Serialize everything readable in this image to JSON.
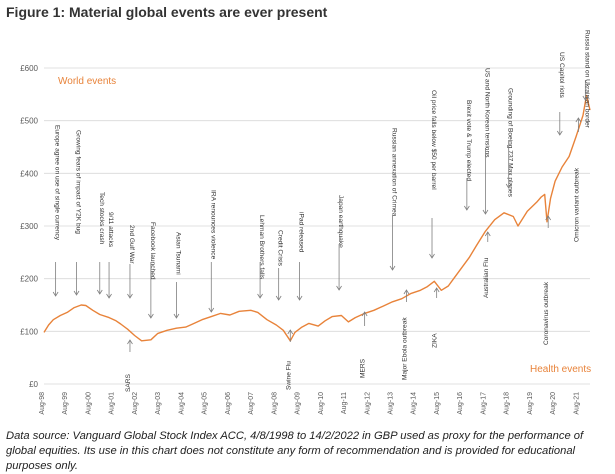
{
  "figure": {
    "title": "Figure 1:  Material global events are ever present",
    "source_note": "Data source: Vanguard Global Stock Index ACC, 4/8/1998 to 14/2/2022 in GBP used as proxy for the performance of global equities. Its use in this chart does not constitute any form of recommendation and is provided for educational purposes only."
  },
  "colors": {
    "line": "#e8833a",
    "grid": "#d9d9d9",
    "axis_text": "#595959",
    "annotation": "#333333",
    "arrow": "#7f7f7f",
    "section_label": "#e8833a"
  },
  "chart_data": {
    "type": "line",
    "title": "Figure 1:  Material global events are ever present",
    "xlabel": "",
    "ylabel": "",
    "ylim": [
      0,
      600
    ],
    "yticks": [
      "£0",
      "£100",
      "£200",
      "£300",
      "£400",
      "£500",
      "£600"
    ],
    "xticks": [
      "Aug-98",
      "Aug-99",
      "Aug-00",
      "Aug-01",
      "Aug-02",
      "Aug-03",
      "Aug-04",
      "Aug-05",
      "Aug-06",
      "Aug-07",
      "Aug-08",
      "Aug-09",
      "Aug-10",
      "Aug-11",
      "Aug-12",
      "Aug-13",
      "Aug-14",
      "Aug-15",
      "Aug-16",
      "Aug-17",
      "Aug-18",
      "Aug-19",
      "Aug-20",
      "Aug-21"
    ],
    "grid": true,
    "legend": "none",
    "section_labels": {
      "top": "World events",
      "bottom": "Health events"
    },
    "series": [
      {
        "x": [
          1998.6,
          1998.8,
          1999.0,
          1999.3,
          1999.6,
          1999.9,
          2000.2,
          2000.4,
          2000.7,
          2001.0,
          2001.4,
          2001.7,
          2001.9,
          2002.2,
          2002.5,
          2002.8,
          2003.2,
          2003.5,
          2003.9,
          2004.3,
          2004.7,
          2005.0,
          2005.4,
          2005.8,
          2006.2,
          2006.6,
          2007.0,
          2007.5,
          2007.8,
          2008.2,
          2008.6,
          2008.9,
          2009.2,
          2009.4,
          2009.7,
          2010.0,
          2010.4,
          2010.7,
          2011.0,
          2011.4,
          2011.7,
          2012.0,
          2012.4,
          2012.8,
          2013.2,
          2013.6,
          2014.0,
          2014.4,
          2014.8,
          2015.1,
          2015.4,
          2015.7,
          2016.0,
          2016.2,
          2016.6,
          2016.9,
          2017.2,
          2017.6,
          2018.0,
          2018.4,
          2018.8,
          2019.0,
          2019.4,
          2019.8,
          2020.0,
          2020.15,
          2020.25,
          2020.4,
          2020.6,
          2020.9,
          2021.2,
          2021.5,
          2021.8,
          2021.95,
          2022.1
        ],
        "y": [
          98,
          112,
          122,
          130,
          136,
          145,
          150,
          149,
          140,
          132,
          126,
          120,
          114,
          104,
          92,
          82,
          84,
          96,
          102,
          106,
          108,
          114,
          122,
          128,
          134,
          131,
          138,
          140,
          136,
          122,
          112,
          102,
          82,
          98,
          108,
          115,
          110,
          120,
          128,
          130,
          118,
          126,
          134,
          140,
          148,
          156,
          162,
          172,
          178,
          185,
          195,
          178,
          186,
          198,
          222,
          240,
          262,
          290,
          312,
          325,
          318,
          300,
          328,
          345,
          355,
          360,
          308,
          352,
          385,
          412,
          432,
          470,
          510,
          548,
          520
        ]
      }
    ],
    "annotations": {
      "top": [
        "Europe agree on use of single currency",
        "Growing fears of impact of Y2K bug",
        "Tech stocks crash",
        "9/11 attacks",
        "2nd Gulf War",
        "Facebook launched",
        "Asian Tsunami",
        "IRA renounces violence",
        "Lehman Brothers falls",
        "Credit Crisis",
        "iPad released",
        "Japan earthquake",
        "Russian annexation of Crimea",
        "Oil price falls below $50 per barrel",
        "Brexit vote & Trump elected",
        "US and North Korean tensions",
        "Grounding of Boeing 737 Max planes",
        "US Capitol riots",
        "Russia stand on Ukrainian border"
      ],
      "bottom": [
        "SARS",
        "Swine Flu",
        "MERS",
        "Major Ebola outbreak",
        "ZIKA",
        "Australian Flu",
        "Coronavirus outbreak",
        "Omicron variant outbreak"
      ]
    }
  }
}
